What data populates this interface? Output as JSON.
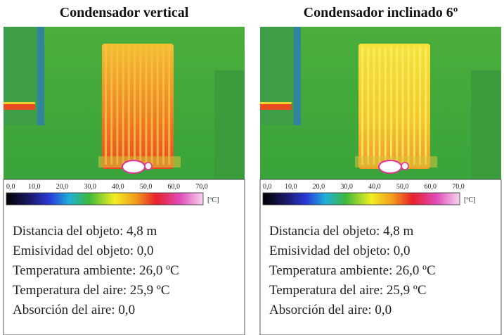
{
  "panels": [
    {
      "title": "Condensador vertical",
      "scale": {
        "ticks": [
          "0,0",
          "10,0",
          "20,0",
          "30,0",
          "40,0",
          "50,0",
          "60,0",
          "70,0"
        ],
        "unit": "[ºC]"
      },
      "info": [
        "Distancia del objeto: 4,8 m",
        "Emisividad del objeto: 0,0",
        "Temperatura ambiente: 26,0 ºC",
        "Temperatura del aire: 25,9 ºC",
        "Absorción del aire: 0,0"
      ]
    },
    {
      "title": "Condensador inclinado 6º",
      "scale": {
        "ticks": [
          "0,0",
          "10,0",
          "20,0",
          "30,0",
          "40,0",
          "50,0",
          "60,0",
          "70,0"
        ],
        "unit": "[ºC]"
      },
      "info": [
        "Distancia del objeto: 4,8 m",
        "Emisividad del objeto: 0,0",
        "Temperatura ambiente: 26,0 ºC",
        "Temperatura del aire: 25,9 ºC",
        "Absorción del aire: 0,0"
      ]
    }
  ]
}
